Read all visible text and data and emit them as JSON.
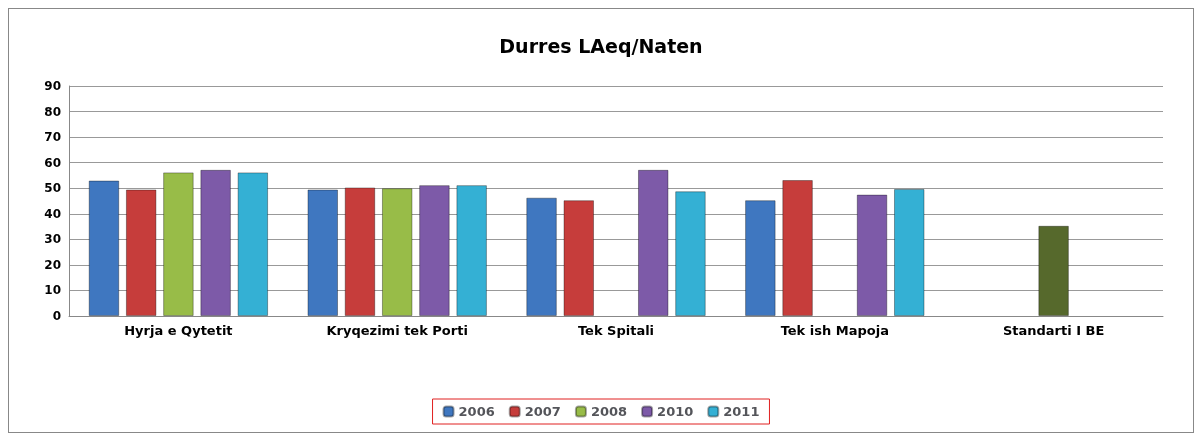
{
  "chart_data": {
    "type": "bar",
    "title": "Durres LAeq/Naten",
    "categories": [
      "Hyrja e Qytetit",
      "Kryqezimi tek Porti",
      "Tek Spitali",
      "Tek ish Mapoja",
      "Standarti I BE"
    ],
    "series": [
      {
        "name": "2006",
        "color": "#3f77c0",
        "values": [
          53,
          49.5,
          46.3,
          45.3,
          null
        ]
      },
      {
        "name": "2007",
        "color": "#c63d3b",
        "values": [
          49.5,
          50.3,
          45.3,
          53.2,
          null
        ]
      },
      {
        "name": "2008",
        "color": "#98bc48",
        "colors": [
          "#98bc48",
          "#98bc48",
          "#98bc48",
          "#98bc48",
          "#56692c"
        ],
        "values": [
          56.2,
          50,
          null,
          null,
          35.3
        ]
      },
      {
        "name": "2010",
        "color": "#7d5aa8",
        "values": [
          57.2,
          51.2,
          57.2,
          47.5,
          null
        ]
      },
      {
        "name": "2011",
        "color": "#34b0d4",
        "values": [
          56.2,
          51.2,
          48.8,
          49.7,
          null
        ]
      }
    ],
    "ylim": [
      0,
      90
    ],
    "yticks": [
      0,
      10,
      20,
      30,
      40,
      50,
      60,
      70,
      80,
      90
    ],
    "grid": "y",
    "legend": "bottom"
  }
}
